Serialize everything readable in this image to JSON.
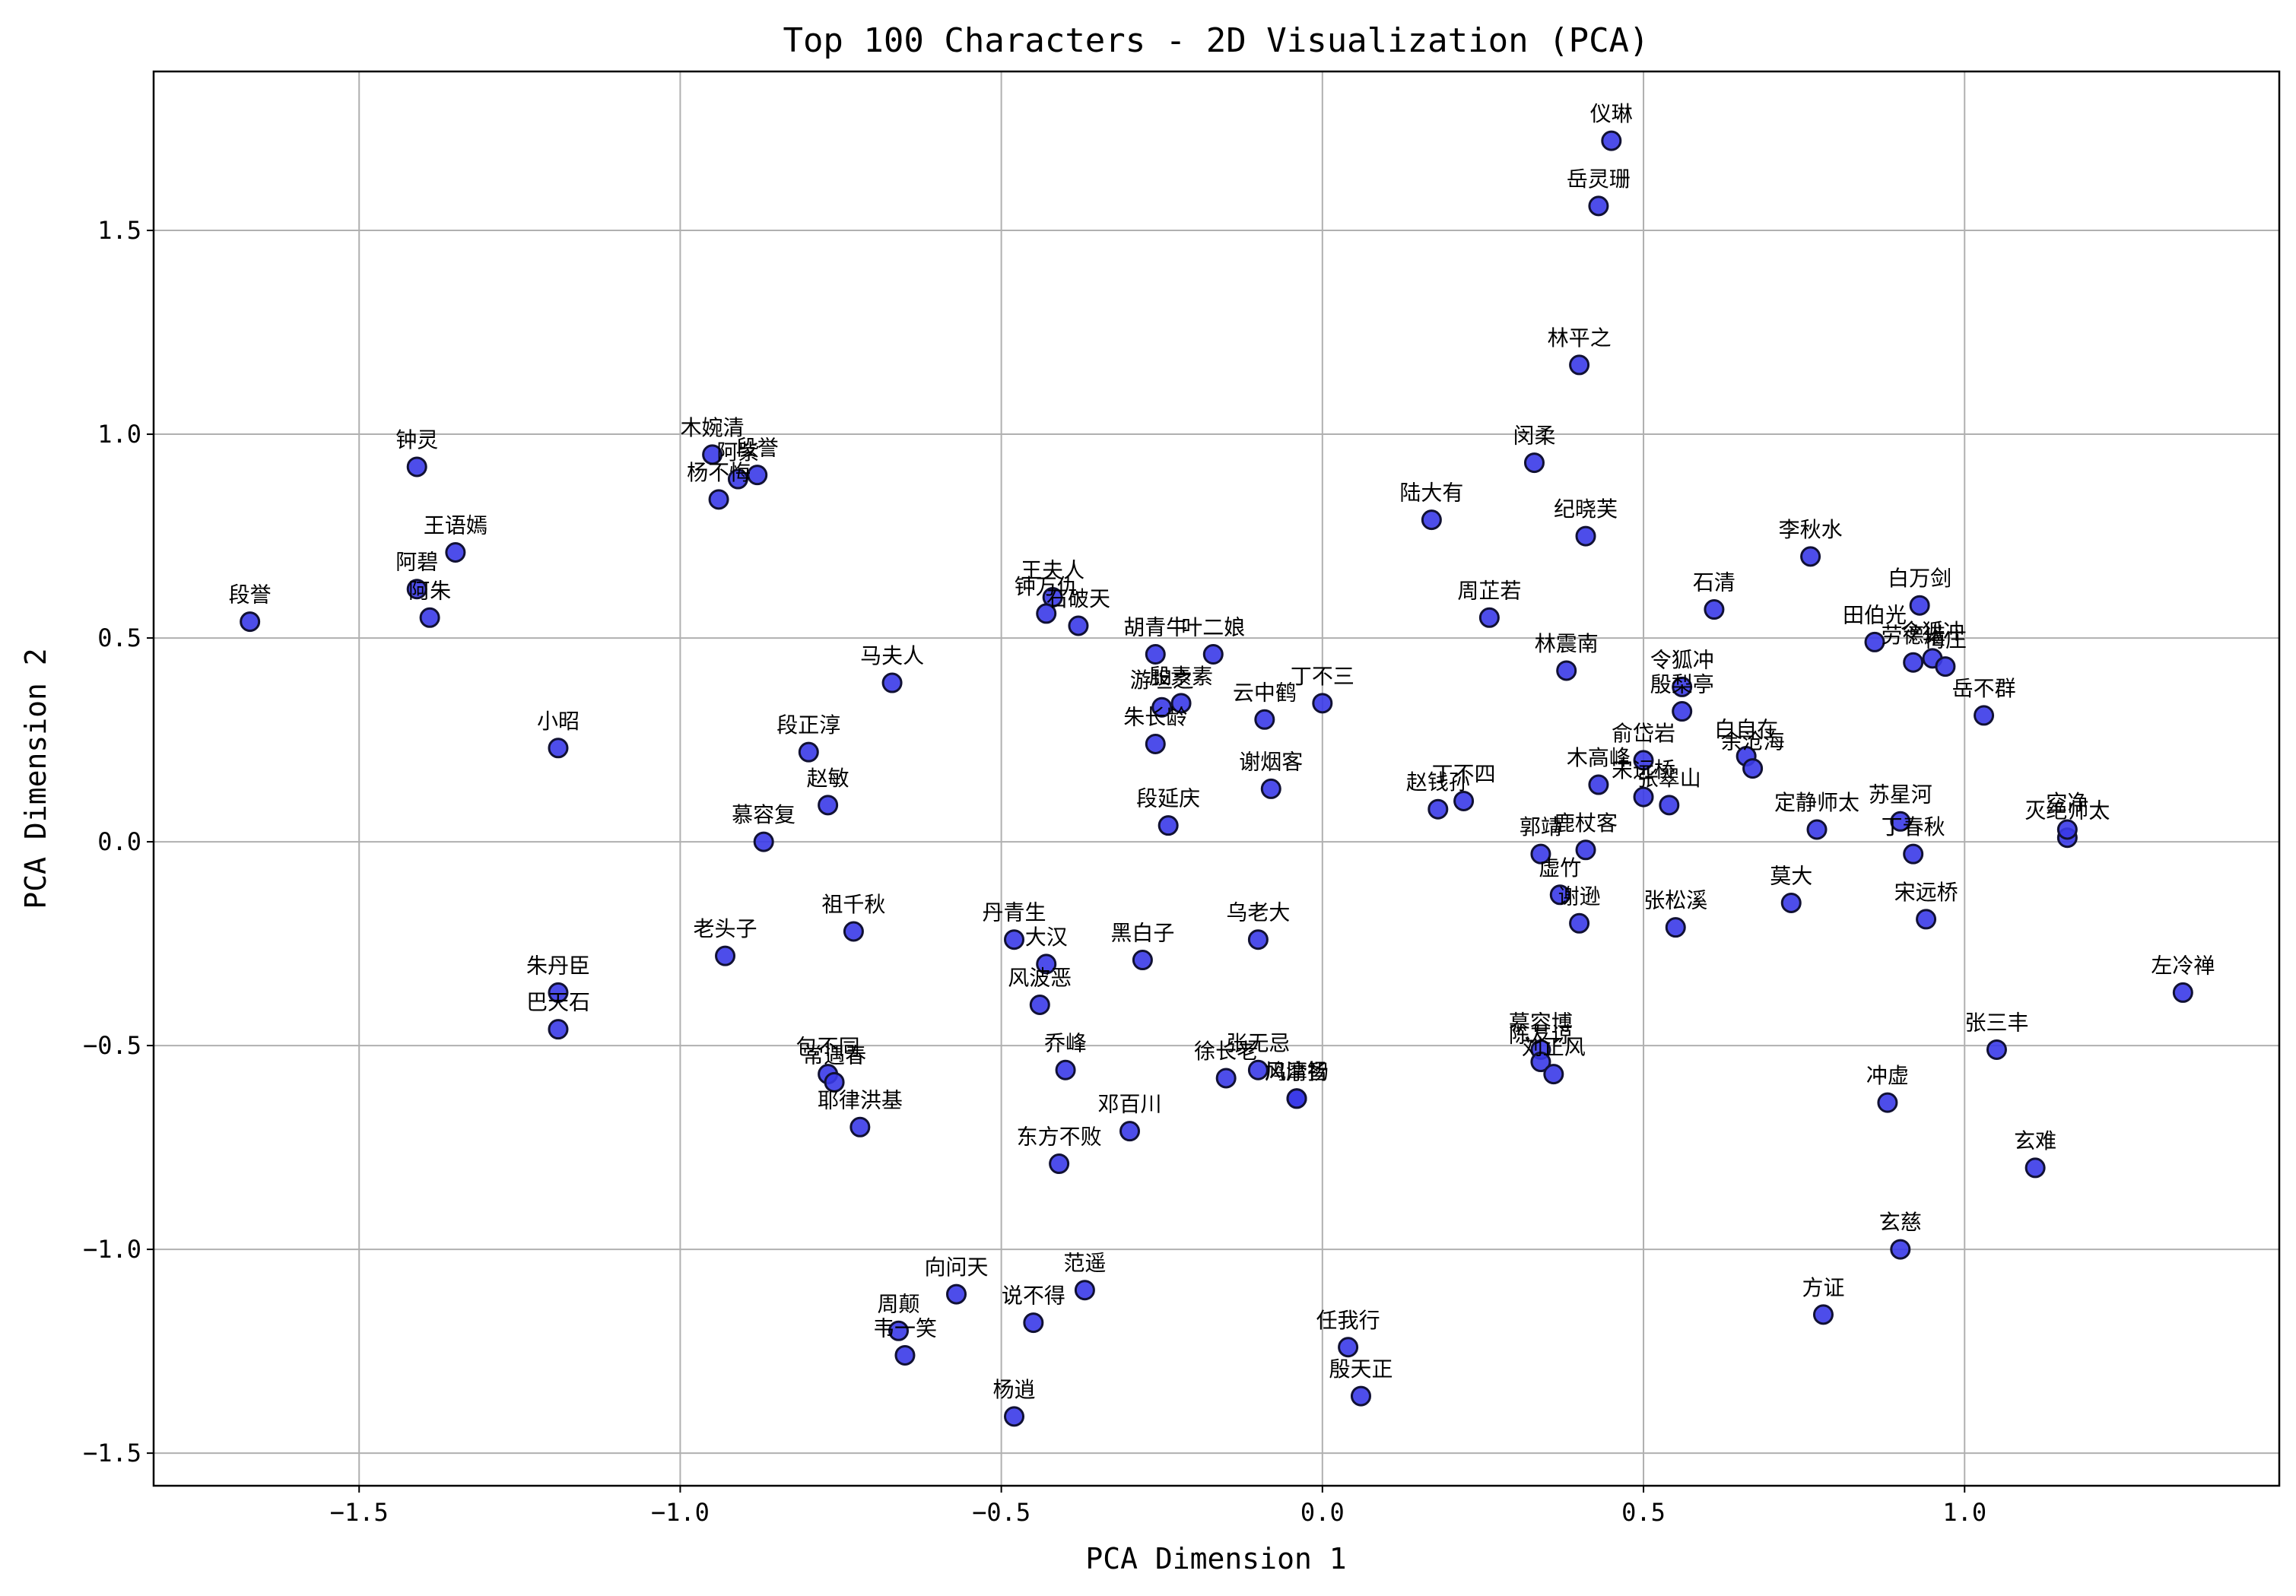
{
  "chart_data": {
    "type": "scatter",
    "title": "Top 100 Characters - 2D Visualization (PCA)",
    "xlabel": "PCA Dimension 1",
    "ylabel": "PCA Dimension 2",
    "xlim": [
      -1.82,
      1.49
    ],
    "ylim": [
      -1.58,
      1.89
    ],
    "xticks": [
      -1.5,
      -1.0,
      -0.5,
      0.0,
      0.5,
      1.0
    ],
    "yticks": [
      -1.5,
      -1.0,
      -0.5,
      0.0,
      0.5,
      1.0,
      1.5
    ],
    "xtick_labels": [
      "−1.5",
      "−1.0",
      "−0.5",
      "0.0",
      "0.5",
      "1.0"
    ],
    "ytick_labels": [
      "−1.5",
      "−1.0",
      "−0.5",
      "0.0",
      "0.5",
      "1.0",
      "1.5"
    ],
    "grid": true,
    "marker_color": "#3a3ae8",
    "marker_edge_color": "#111133",
    "points": [
      {
        "label": "仪琳",
        "x": 0.45,
        "y": 1.72
      },
      {
        "label": "岳灵珊",
        "x": 0.43,
        "y": 1.56
      },
      {
        "label": "林平之",
        "x": 0.4,
        "y": 1.17
      },
      {
        "label": "闵柔",
        "x": 0.33,
        "y": 0.93
      },
      {
        "label": "纪晓芙",
        "x": 0.41,
        "y": 0.75
      },
      {
        "label": "陆大有",
        "x": 0.17,
        "y": 0.79
      },
      {
        "label": "周芷若",
        "x": 0.26,
        "y": 0.55
      },
      {
        "label": "林震南",
        "x": 0.38,
        "y": 0.42
      },
      {
        "label": "石清",
        "x": 0.61,
        "y": 0.57
      },
      {
        "label": "李秋水",
        "x": 0.76,
        "y": 0.7
      },
      {
        "label": "白万剑",
        "x": 0.93,
        "y": 0.58
      },
      {
        "label": "田伯光",
        "x": 0.86,
        "y": 0.49
      },
      {
        "label": "劳德诺",
        "x": 0.92,
        "y": 0.44
      },
      {
        "label": "令狐冲",
        "x": 0.95,
        "y": 0.45
      },
      {
        "label": "梅庄",
        "x": 0.97,
        "y": 0.43
      },
      {
        "label": "岳不群",
        "x": 1.03,
        "y": 0.31
      },
      {
        "label": "令狐冲",
        "x": 0.56,
        "y": 0.38
      },
      {
        "label": "殷梨亭",
        "x": 0.56,
        "y": 0.32
      },
      {
        "label": "白自在",
        "x": 0.66,
        "y": 0.21
      },
      {
        "label": "余沧海",
        "x": 0.67,
        "y": 0.18
      },
      {
        "label": "俞岱岩",
        "x": 0.5,
        "y": 0.2
      },
      {
        "label": "木高峰",
        "x": 0.43,
        "y": 0.14
      },
      {
        "label": "宋远桥",
        "x": 0.5,
        "y": 0.11
      },
      {
        "label": "张翠山",
        "x": 0.54,
        "y": 0.09
      },
      {
        "label": "定静师太",
        "x": 0.77,
        "y": 0.03
      },
      {
        "label": "苏星河",
        "x": 0.9,
        "y": 0.05
      },
      {
        "label": "丁春秋",
        "x": 0.92,
        "y": -0.03
      },
      {
        "label": "宋远桥",
        "x": 0.94,
        "y": -0.19
      },
      {
        "label": "灭绝师太",
        "x": 1.16,
        "y": 0.01
      },
      {
        "label": "空净",
        "x": 1.16,
        "y": 0.03
      },
      {
        "label": "莫大",
        "x": 0.73,
        "y": -0.15
      },
      {
        "label": "张松溪",
        "x": 0.55,
        "y": -0.21
      },
      {
        "label": "郭靖",
        "x": 0.34,
        "y": -0.03
      },
      {
        "label": "鹿杖客",
        "x": 0.41,
        "y": -0.02
      },
      {
        "label": "虚竹",
        "x": 0.37,
        "y": -0.13
      },
      {
        "label": "谢逊",
        "x": 0.4,
        "y": -0.2
      },
      {
        "label": "左冷禅",
        "x": 1.34,
        "y": -0.37
      },
      {
        "label": "张三丰",
        "x": 1.05,
        "y": -0.51
      },
      {
        "label": "冲虚",
        "x": 0.88,
        "y": -0.64
      },
      {
        "label": "玄难",
        "x": 1.11,
        "y": -0.8
      },
      {
        "label": "玄慈",
        "x": 0.9,
        "y": -1.0
      },
      {
        "label": "方证",
        "x": 0.78,
        "y": -1.16
      },
      {
        "label": "慕容博",
        "x": 0.34,
        "y": -0.51
      },
      {
        "label": "陈友谅",
        "x": 0.34,
        "y": -0.54
      },
      {
        "label": "刘正风",
        "x": 0.36,
        "y": -0.57
      },
      {
        "label": "丁不三",
        "x": 0.0,
        "y": 0.34
      },
      {
        "label": "云中鹤",
        "x": -0.09,
        "y": 0.3
      },
      {
        "label": "谢烟客",
        "x": -0.08,
        "y": 0.13
      },
      {
        "label": "丁不四",
        "x": 0.22,
        "y": 0.1
      },
      {
        "label": "赵钱孙",
        "x": 0.18,
        "y": 0.08
      },
      {
        "label": "叶二娘",
        "x": -0.17,
        "y": 0.46
      },
      {
        "label": "胡青牛",
        "x": -0.26,
        "y": 0.46
      },
      {
        "label": "游坦之",
        "x": -0.25,
        "y": 0.33
      },
      {
        "label": "殷素素",
        "x": -0.22,
        "y": 0.34
      },
      {
        "label": "朱长龄",
        "x": -0.26,
        "y": 0.24
      },
      {
        "label": "段延庆",
        "x": -0.24,
        "y": 0.04
      },
      {
        "label": "乌老大",
        "x": -0.1,
        "y": -0.24
      },
      {
        "label": "张无忌",
        "x": -0.1,
        "y": -0.56
      },
      {
        "label": "徐长老",
        "x": -0.15,
        "y": -0.58
      },
      {
        "label": "鸠摩智",
        "x": -0.04,
        "y": -0.63
      },
      {
        "label": "风清扬",
        "x": -0.04,
        "y": -0.63
      },
      {
        "label": "邓百川",
        "x": -0.3,
        "y": -0.71
      },
      {
        "label": "黑白子",
        "x": -0.28,
        "y": -0.29
      },
      {
        "label": "王夫人",
        "x": -0.42,
        "y": 0.6
      },
      {
        "label": "钟万仇",
        "x": -0.43,
        "y": 0.56
      },
      {
        "label": "石破天",
        "x": -0.38,
        "y": 0.53
      },
      {
        "label": "马夫人",
        "x": -0.67,
        "y": 0.39
      },
      {
        "label": "段正淳",
        "x": -0.8,
        "y": 0.22
      },
      {
        "label": "赵敏",
        "x": -0.77,
        "y": 0.09
      },
      {
        "label": "慕容复",
        "x": -0.87,
        "y": 0.0
      },
      {
        "label": "丹青生",
        "x": -0.48,
        "y": -0.24
      },
      {
        "label": "大汉",
        "x": -0.43,
        "y": -0.3
      },
      {
        "label": "风波恶",
        "x": -0.44,
        "y": -0.4
      },
      {
        "label": "乔峰",
        "x": -0.4,
        "y": -0.56
      },
      {
        "label": "东方不败",
        "x": -0.41,
        "y": -0.79
      },
      {
        "label": "祖千秋",
        "x": -0.73,
        "y": -0.22
      },
      {
        "label": "老头子",
        "x": -0.93,
        "y": -0.28
      },
      {
        "label": "包不同",
        "x": -0.77,
        "y": -0.57
      },
      {
        "label": "常遇春",
        "x": -0.76,
        "y": -0.59
      },
      {
        "label": "耶律洪基",
        "x": -0.72,
        "y": -0.7
      },
      {
        "label": "向问天",
        "x": -0.57,
        "y": -1.11
      },
      {
        "label": "范遥",
        "x": -0.37,
        "y": -1.1
      },
      {
        "label": "说不得",
        "x": -0.45,
        "y": -1.18
      },
      {
        "label": "周颠",
        "x": -0.66,
        "y": -1.2
      },
      {
        "label": "韦一笑",
        "x": -0.65,
        "y": -1.26
      },
      {
        "label": "杨逍",
        "x": -0.48,
        "y": -1.41
      },
      {
        "label": "任我行",
        "x": 0.04,
        "y": -1.24
      },
      {
        "label": "殷天正",
        "x": 0.06,
        "y": -1.36
      },
      {
        "label": "木婉清",
        "x": -0.95,
        "y": 0.95
      },
      {
        "label": "阿紫",
        "x": -0.91,
        "y": 0.89
      },
      {
        "label": "段誉",
        "x": -0.88,
        "y": 0.9
      },
      {
        "label": "杨不悔",
        "x": -0.94,
        "y": 0.84
      },
      {
        "label": "钟灵",
        "x": -1.41,
        "y": 0.92
      },
      {
        "label": "王语嫣",
        "x": -1.35,
        "y": 0.71
      },
      {
        "label": "阿碧",
        "x": -1.41,
        "y": 0.62
      },
      {
        "label": "阿朱",
        "x": -1.39,
        "y": 0.55
      },
      {
        "label": "段誉",
        "x": -1.67,
        "y": 0.54
      },
      {
        "label": "小昭",
        "x": -1.19,
        "y": 0.23
      },
      {
        "label": "朱丹臣",
        "x": -1.19,
        "y": -0.37
      },
      {
        "label": "巴天石",
        "x": -1.19,
        "y": -0.46
      }
    ]
  }
}
